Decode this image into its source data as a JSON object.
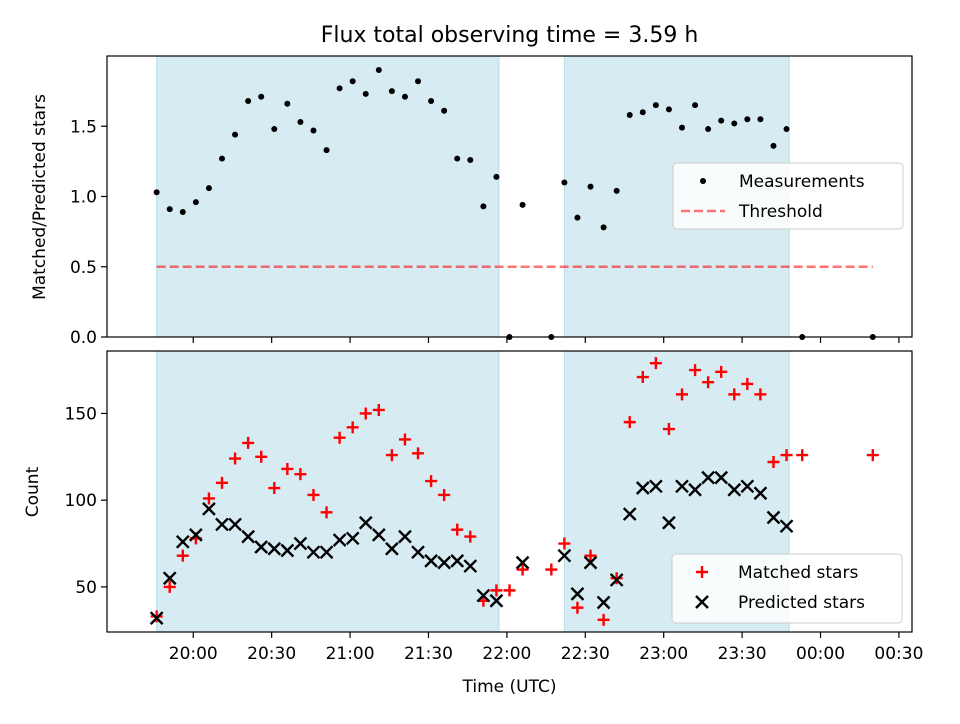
{
  "title": "Flux total observing time = 3.59 h",
  "xlabel": "Time (UTC)",
  "colors": {
    "shade": "#add8e6",
    "measurement": "#000000",
    "threshold": "#ff0000",
    "matched": "#ff0000",
    "predicted": "#000000"
  },
  "chart_data": [
    {
      "type": "scatter",
      "ylabel": "Matched/Predicted stars",
      "xlim": [
        "19:27",
        "00:35"
      ],
      "ylim": [
        0,
        2.0
      ],
      "y_ticks": [
        "0.0",
        "0.5",
        "1.0",
        "1.5"
      ],
      "x_ticks": [
        "20:00",
        "20:30",
        "21:00",
        "21:30",
        "22:00",
        "22:30",
        "23:00",
        "23:30",
        "00:00",
        "00:30"
      ],
      "shaded_intervals": [
        [
          "19:46",
          "21:57"
        ],
        [
          "22:22",
          "23:48"
        ]
      ],
      "legend_position": "center-right",
      "series": [
        {
          "name": "Measurements",
          "marker": "dot",
          "points": [
            [
              "19:46",
              1.03
            ],
            [
              "19:51",
              0.91
            ],
            [
              "19:56",
              0.89
            ],
            [
              "20:01",
              0.96
            ],
            [
              "20:06",
              1.06
            ],
            [
              "20:11",
              1.27
            ],
            [
              "20:16",
              1.44
            ],
            [
              "20:21",
              1.68
            ],
            [
              "20:26",
              1.71
            ],
            [
              "20:31",
              1.48
            ],
            [
              "20:36",
              1.66
            ],
            [
              "20:41",
              1.53
            ],
            [
              "20:46",
              1.47
            ],
            [
              "20:51",
              1.33
            ],
            [
              "20:56",
              1.77
            ],
            [
              "21:01",
              1.82
            ],
            [
              "21:06",
              1.73
            ],
            [
              "21:11",
              1.9
            ],
            [
              "21:16",
              1.75
            ],
            [
              "21:21",
              1.71
            ],
            [
              "21:26",
              1.82
            ],
            [
              "21:31",
              1.68
            ],
            [
              "21:36",
              1.61
            ],
            [
              "21:41",
              1.27
            ],
            [
              "21:46",
              1.26
            ],
            [
              "21:51",
              0.93
            ],
            [
              "21:56",
              1.14
            ],
            [
              "22:01",
              0.0
            ],
            [
              "22:06",
              0.94
            ],
            [
              "22:17",
              0.0
            ],
            [
              "22:22",
              1.1
            ],
            [
              "22:27",
              0.85
            ],
            [
              "22:32",
              1.07
            ],
            [
              "22:37",
              0.78
            ],
            [
              "22:42",
              1.04
            ],
            [
              "22:47",
              1.58
            ],
            [
              "22:52",
              1.6
            ],
            [
              "22:57",
              1.65
            ],
            [
              "23:02",
              1.62
            ],
            [
              "23:07",
              1.49
            ],
            [
              "23:12",
              1.65
            ],
            [
              "23:17",
              1.48
            ],
            [
              "23:22",
              1.54
            ],
            [
              "23:27",
              1.52
            ],
            [
              "23:32",
              1.55
            ],
            [
              "23:37",
              1.55
            ],
            [
              "23:42",
              1.36
            ],
            [
              "23:47",
              1.48
            ],
            [
              "23:53",
              0.0
            ],
            [
              "00:20",
              0.0
            ]
          ]
        },
        {
          "name": "Threshold",
          "marker": "dashed-line",
          "points": [
            [
              "19:46",
              0.5
            ],
            [
              "00:20",
              0.5
            ]
          ]
        }
      ]
    },
    {
      "type": "scatter",
      "ylabel": "Count",
      "xlim": [
        "19:27",
        "00:35"
      ],
      "ylim": [
        24,
        186
      ],
      "y_ticks": [
        "50",
        "100",
        "150"
      ],
      "x_ticks": [
        "20:00",
        "20:30",
        "21:00",
        "21:30",
        "22:00",
        "22:30",
        "23:00",
        "23:30",
        "00:00",
        "00:30"
      ],
      "shaded_intervals": [
        [
          "19:46",
          "21:57"
        ],
        [
          "22:22",
          "23:48"
        ]
      ],
      "legend_position": "lower-right",
      "series": [
        {
          "name": "Matched stars",
          "marker": "plus",
          "points": [
            [
              "19:46",
              33
            ],
            [
              "19:51",
              50
            ],
            [
              "19:56",
              68
            ],
            [
              "20:01",
              78
            ],
            [
              "20:06",
              101
            ],
            [
              "20:11",
              110
            ],
            [
              "20:16",
              124
            ],
            [
              "20:21",
              133
            ],
            [
              "20:26",
              125
            ],
            [
              "20:31",
              107
            ],
            [
              "20:36",
              118
            ],
            [
              "20:41",
              115
            ],
            [
              "20:46",
              103
            ],
            [
              "20:51",
              93
            ],
            [
              "20:56",
              136
            ],
            [
              "21:01",
              142
            ],
            [
              "21:06",
              150
            ],
            [
              "21:11",
              152
            ],
            [
              "21:16",
              126
            ],
            [
              "21:21",
              135
            ],
            [
              "21:26",
              127
            ],
            [
              "21:31",
              111
            ],
            [
              "21:36",
              103
            ],
            [
              "21:41",
              83
            ],
            [
              "21:46",
              79
            ],
            [
              "21:51",
              42
            ],
            [
              "21:56",
              48
            ],
            [
              "22:01",
              48
            ],
            [
              "22:06",
              60
            ],
            [
              "22:17",
              60
            ],
            [
              "22:22",
              75
            ],
            [
              "22:27",
              38
            ],
            [
              "22:32",
              68
            ],
            [
              "22:37",
              31
            ],
            [
              "22:42",
              55
            ],
            [
              "22:47",
              145
            ],
            [
              "22:52",
              171
            ],
            [
              "22:57",
              179
            ],
            [
              "23:02",
              141
            ],
            [
              "23:07",
              161
            ],
            [
              "23:12",
              175
            ],
            [
              "23:17",
              168
            ],
            [
              "23:22",
              174
            ],
            [
              "23:27",
              161
            ],
            [
              "23:32",
              167
            ],
            [
              "23:37",
              161
            ],
            [
              "23:42",
              122
            ],
            [
              "23:47",
              126
            ],
            [
              "23:53",
              126
            ],
            [
              "00:20",
              126
            ]
          ]
        },
        {
          "name": "Predicted stars",
          "marker": "x",
          "points": [
            [
              "19:46",
              32
            ],
            [
              "19:51",
              55
            ],
            [
              "19:56",
              76
            ],
            [
              "20:01",
              80
            ],
            [
              "20:06",
              95
            ],
            [
              "20:11",
              86
            ],
            [
              "20:16",
              86
            ],
            [
              "20:21",
              79
            ],
            [
              "20:26",
              73
            ],
            [
              "20:31",
              72
            ],
            [
              "20:36",
              71
            ],
            [
              "20:41",
              75
            ],
            [
              "20:46",
              70
            ],
            [
              "20:51",
              70
            ],
            [
              "20:56",
              77
            ],
            [
              "21:01",
              78
            ],
            [
              "21:06",
              87
            ],
            [
              "21:11",
              80
            ],
            [
              "21:16",
              72
            ],
            [
              "21:21",
              79
            ],
            [
              "21:26",
              70
            ],
            [
              "21:31",
              65
            ],
            [
              "21:36",
              64
            ],
            [
              "21:41",
              65
            ],
            [
              "21:46",
              62
            ],
            [
              "21:51",
              45
            ],
            [
              "21:56",
              42
            ],
            [
              "22:06",
              64
            ],
            [
              "22:22",
              68
            ],
            [
              "22:27",
              46
            ],
            [
              "22:32",
              64
            ],
            [
              "22:37",
              41
            ],
            [
              "22:42",
              54
            ],
            [
              "22:47",
              92
            ],
            [
              "22:52",
              107
            ],
            [
              "22:57",
              108
            ],
            [
              "23:02",
              87
            ],
            [
              "23:07",
              108
            ],
            [
              "23:12",
              106
            ],
            [
              "23:17",
              113
            ],
            [
              "23:22",
              113
            ],
            [
              "23:27",
              106
            ],
            [
              "23:32",
              108
            ],
            [
              "23:37",
              104
            ],
            [
              "23:42",
              90
            ],
            [
              "23:47",
              85
            ]
          ]
        }
      ]
    }
  ]
}
